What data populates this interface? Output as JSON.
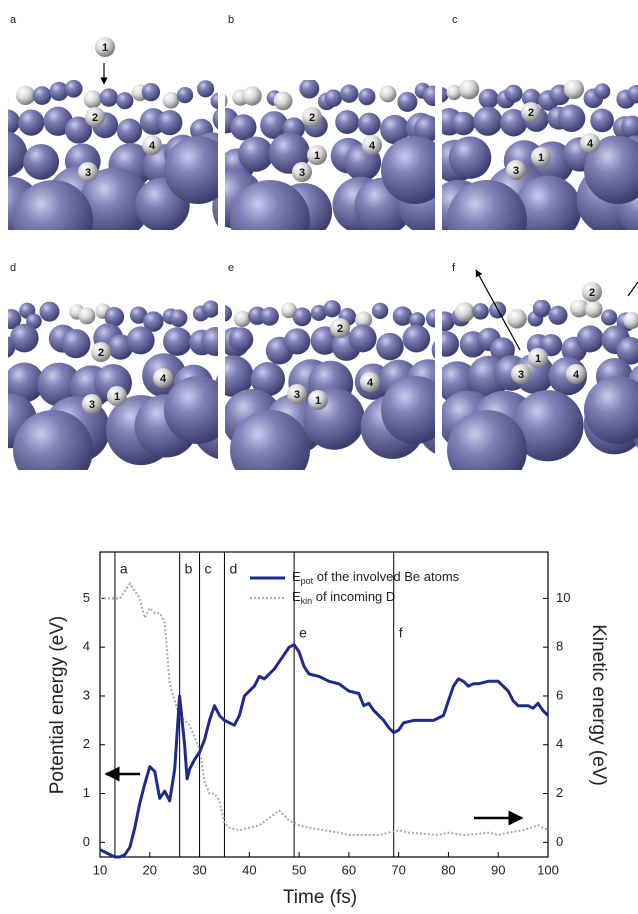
{
  "panels": [
    {
      "label": "a",
      "atoms": [
        "1",
        "2",
        "3",
        "4"
      ]
    },
    {
      "label": "b",
      "atoms": [
        "2",
        "1",
        "4",
        "3"
      ]
    },
    {
      "label": "c",
      "atoms": [
        "2",
        "1",
        "4",
        "3"
      ]
    },
    {
      "label": "d",
      "atoms": [
        "2",
        "4",
        "1",
        "3"
      ]
    },
    {
      "label": "e",
      "atoms": [
        "2",
        "4",
        "3",
        "1"
      ]
    },
    {
      "label": "f",
      "atoms": [
        "2",
        "1",
        "3",
        "4"
      ]
    }
  ],
  "chart_data": {
    "type": "line",
    "x_label": "Time (fs)",
    "y_label": "Potential energy (eV)",
    "y2_label": "Kinetic energy (eV)",
    "xlim": [
      10,
      100
    ],
    "xticks": [
      10,
      20,
      30,
      40,
      50,
      60,
      70,
      80,
      90,
      100
    ],
    "ylim": [
      -0.3,
      5.95
    ],
    "yticks": [
      0,
      1,
      2,
      3,
      4,
      5
    ],
    "y2lim": [
      -0.6,
      11.9
    ],
    "y2ticks": [
      0,
      2,
      4,
      6,
      8,
      10
    ],
    "markers": [
      {
        "x": 13,
        "label": "a"
      },
      {
        "x": 26,
        "label": "b"
      },
      {
        "x": 30,
        "label": "c"
      },
      {
        "x": 35,
        "label": "d"
      },
      {
        "x": 49,
        "label": "e"
      },
      {
        "x": 69,
        "label": "f"
      }
    ],
    "series": [
      {
        "name": "E",
        "name_sub": "pot",
        "name_tail": " of the involved Be atoms",
        "color": "#1f2a8c",
        "style": "solid",
        "x": [
          10,
          11,
          12,
          13,
          14,
          15,
          16,
          17,
          18,
          19,
          20,
          21,
          22,
          23,
          24,
          25,
          26,
          27,
          27.5,
          28,
          29,
          30,
          31,
          32,
          33,
          34,
          35,
          36,
          37,
          38,
          39,
          40,
          41,
          42,
          43,
          44,
          45,
          46,
          47,
          48,
          49,
          50,
          51,
          52,
          54,
          56,
          58,
          60,
          62,
          63,
          64,
          65,
          66,
          67,
          68,
          69,
          70,
          71,
          73,
          75,
          77,
          79,
          80,
          81,
          82,
          83,
          84,
          85,
          86,
          88,
          90,
          92,
          93,
          94,
          96,
          97,
          98,
          99,
          100
        ],
        "values": [
          -0.15,
          -0.2,
          -0.25,
          -0.3,
          -0.3,
          -0.25,
          -0.1,
          0.3,
          0.8,
          1.2,
          1.55,
          1.45,
          0.9,
          1.05,
          0.85,
          1.5,
          3.0,
          2.0,
          1.3,
          1.5,
          1.7,
          1.85,
          2.1,
          2.5,
          2.8,
          2.6,
          2.5,
          2.45,
          2.4,
          2.6,
          3.0,
          3.1,
          3.2,
          3.4,
          3.35,
          3.45,
          3.55,
          3.7,
          3.85,
          4.0,
          4.05,
          3.9,
          3.6,
          3.45,
          3.4,
          3.3,
          3.25,
          3.1,
          3.05,
          2.8,
          2.85,
          2.7,
          2.6,
          2.5,
          2.35,
          2.25,
          2.3,
          2.45,
          2.5,
          2.5,
          2.5,
          2.6,
          2.9,
          3.2,
          3.35,
          3.3,
          3.2,
          3.25,
          3.25,
          3.3,
          3.3,
          3.1,
          2.9,
          2.8,
          2.8,
          2.75,
          2.85,
          2.7,
          2.6
        ]
      },
      {
        "name": "E",
        "name_sub": "kin",
        "name_tail": " of incoming D",
        "color": "#aaaaaa",
        "style": "dotted",
        "axis": "y2",
        "x": [
          10,
          12,
          14,
          15,
          16,
          17,
          18,
          19,
          20,
          21,
          22,
          23,
          24,
          25,
          26,
          27,
          28,
          29,
          30,
          31,
          32,
          33,
          34,
          35,
          36,
          38,
          40,
          42,
          44,
          46,
          47,
          48,
          50,
          52,
          55,
          58,
          60,
          63,
          66,
          68,
          70,
          72,
          75,
          78,
          80,
          83,
          86,
          88,
          90,
          92,
          95,
          98,
          100
        ],
        "values": [
          10,
          10,
          10,
          10.3,
          10.6,
          10.3,
          10,
          9.2,
          9.6,
          9.4,
          9.4,
          9,
          6.5,
          5.8,
          5.2,
          5,
          4.8,
          4.3,
          3.8,
          2.5,
          2,
          2,
          1.7,
          0.8,
          0.6,
          0.5,
          0.6,
          0.7,
          1,
          1.3,
          1.1,
          0.9,
          0.7,
          0.6,
          0.5,
          0.4,
          0.3,
          0.3,
          0.3,
          0.4,
          0.5,
          0.4,
          0.35,
          0.3,
          0.4,
          0.3,
          0.35,
          0.4,
          0.3,
          0.4,
          0.5,
          0.7,
          0.5
        ]
      }
    ]
  }
}
